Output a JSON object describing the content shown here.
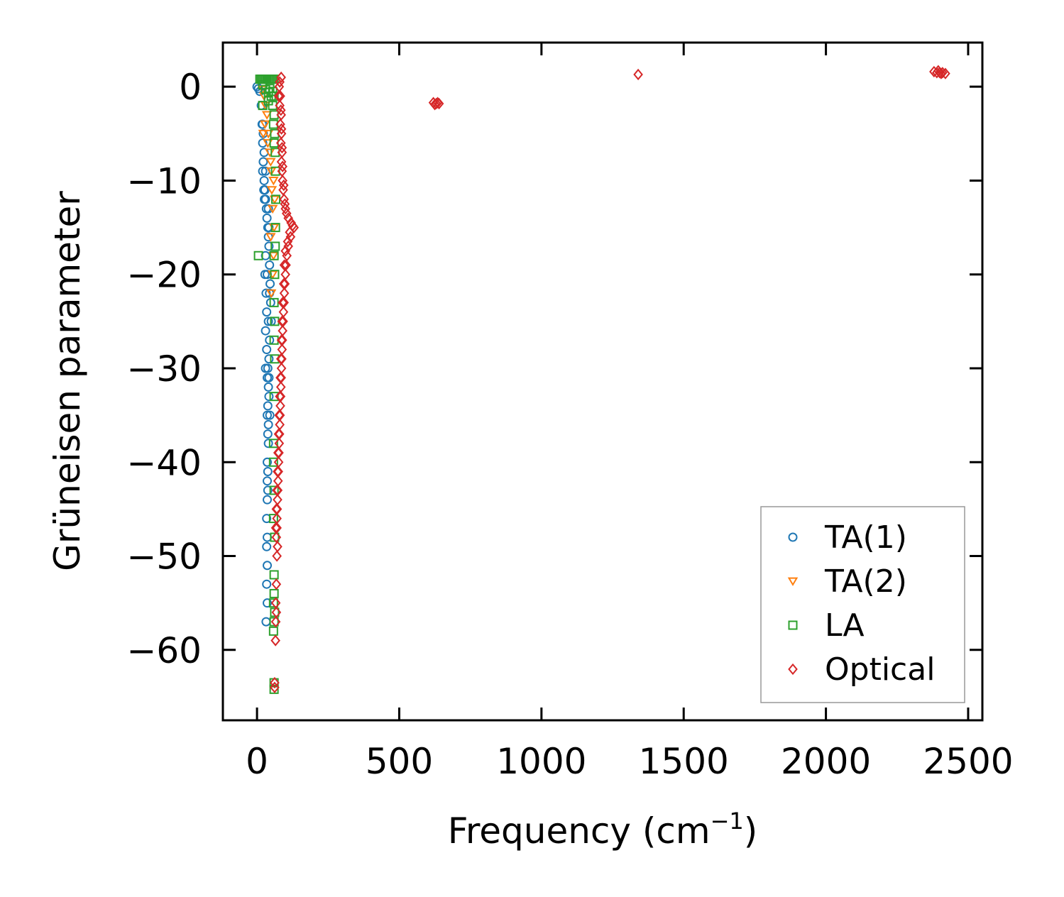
{
  "chart_data": {
    "type": "scatter",
    "title": "",
    "xlabel": "Frequency (cm",
    "xlabel_superscript": "−1",
    "xlabel_suffix": ")",
    "ylabel": "Grüneisen parameter",
    "xlim": [
      -120,
      2550
    ],
    "ylim": [
      -67.5,
      4.7
    ],
    "xticks": [
      0,
      500,
      1000,
      1500,
      2000,
      2500
    ],
    "xtick_labels": [
      "0",
      "500",
      "1000",
      "1500",
      "2000",
      "2500"
    ],
    "yticks": [
      0,
      -10,
      -20,
      -30,
      -40,
      -50,
      -60
    ],
    "ytick_labels": [
      "0",
      "−10",
      "−20",
      "−30",
      "−40",
      "−50",
      "−60"
    ],
    "grid": false,
    "legend_position": "lower-right",
    "series": [
      {
        "name": "TA(1)",
        "marker": "circle",
        "color": "#1f77b4",
        "points": [
          [
            0,
            0
          ],
          [
            5,
            -0.2
          ],
          [
            10,
            -0.5
          ],
          [
            15,
            -2
          ],
          [
            18,
            -4
          ],
          [
            20,
            -6
          ],
          [
            22,
            -8
          ],
          [
            25,
            -10
          ],
          [
            28,
            -11
          ],
          [
            30,
            -12
          ],
          [
            33,
            -13
          ],
          [
            35,
            -14
          ],
          [
            38,
            -15
          ],
          [
            40,
            -16
          ],
          [
            42,
            -17
          ],
          [
            44,
            -19
          ],
          [
            46,
            -21
          ],
          [
            48,
            -23
          ],
          [
            50,
            -25
          ],
          [
            44,
            -27
          ],
          [
            42,
            -29
          ],
          [
            38,
            -30
          ],
          [
            36,
            -31
          ],
          [
            40,
            -32
          ],
          [
            42,
            -33
          ],
          [
            38,
            -34
          ],
          [
            36,
            -35
          ],
          [
            40,
            -36
          ],
          [
            38,
            -37
          ],
          [
            40,
            -38
          ],
          [
            36,
            -40
          ],
          [
            38,
            -41
          ],
          [
            36,
            -42
          ],
          [
            38,
            -43
          ],
          [
            36,
            -44
          ],
          [
            34,
            -46
          ],
          [
            36,
            -48
          ],
          [
            34,
            -49
          ],
          [
            36,
            -51
          ],
          [
            34,
            -53
          ],
          [
            36,
            -55
          ],
          [
            32,
            -57
          ],
          [
            20,
            -4
          ],
          [
            22,
            -5
          ],
          [
            25,
            -7
          ],
          [
            30,
            -9
          ],
          [
            26,
            -12
          ],
          [
            30,
            -18
          ],
          [
            28,
            -20
          ],
          [
            32,
            -22
          ],
          [
            34,
            -24
          ],
          [
            30,
            -26
          ],
          [
            34,
            -28
          ],
          [
            20,
            -9
          ],
          [
            24,
            -11
          ],
          [
            40,
            -13
          ],
          [
            42,
            -15
          ],
          [
            36,
            -20
          ],
          [
            44,
            -22
          ],
          [
            40,
            -25
          ],
          [
            30,
            -30
          ],
          [
            42,
            -31
          ],
          [
            45,
            -35
          ]
        ]
      },
      {
        "name": "TA(2)",
        "marker": "triangle-down",
        "color": "#ff7f0e",
        "points": [
          [
            20,
            -0.3
          ],
          [
            25,
            -1
          ],
          [
            30,
            -2
          ],
          [
            35,
            -3
          ],
          [
            40,
            -5
          ],
          [
            45,
            -7
          ],
          [
            50,
            -9
          ],
          [
            52,
            -11
          ],
          [
            55,
            -13
          ],
          [
            22,
            -5
          ],
          [
            28,
            -4
          ],
          [
            38,
            -6
          ],
          [
            48,
            -8
          ],
          [
            58,
            -10
          ],
          [
            60,
            -15
          ],
          [
            58,
            -18
          ],
          [
            55,
            -20
          ],
          [
            50,
            -22
          ],
          [
            48,
            -16
          ],
          [
            62,
            -12
          ]
        ]
      },
      {
        "name": "LA",
        "marker": "square",
        "color": "#2ca02c",
        "points": [
          [
            10,
            0.8
          ],
          [
            15,
            0.8
          ],
          [
            20,
            0.8
          ],
          [
            25,
            0.8
          ],
          [
            30,
            0.8
          ],
          [
            35,
            0.8
          ],
          [
            40,
            0.8
          ],
          [
            45,
            0.8
          ],
          [
            50,
            0.8
          ],
          [
            55,
            0.8
          ],
          [
            60,
            0.8
          ],
          [
            20,
            0.2
          ],
          [
            30,
            -0.3
          ],
          [
            40,
            -0.6
          ],
          [
            50,
            -1
          ],
          [
            55,
            -2
          ],
          [
            60,
            -3
          ],
          [
            62,
            -5
          ],
          [
            64,
            -7
          ],
          [
            65,
            -9
          ],
          [
            66,
            -12
          ],
          [
            65,
            -15
          ],
          [
            64,
            -17
          ],
          [
            62,
            -20
          ],
          [
            60,
            -23
          ],
          [
            60,
            -27
          ],
          [
            62,
            -29
          ],
          [
            60,
            -33
          ],
          [
            58,
            -38
          ],
          [
            60,
            -43
          ],
          [
            58,
            -46
          ],
          [
            60,
            -52
          ],
          [
            58,
            -55
          ],
          [
            60,
            -57
          ],
          [
            58,
            -58
          ],
          [
            60,
            -63.5
          ],
          [
            60,
            -64.2
          ],
          [
            5,
            -18
          ],
          [
            20,
            -2
          ],
          [
            40,
            -1.5
          ],
          [
            60,
            -1
          ],
          [
            58,
            -4
          ],
          [
            60,
            -6
          ],
          [
            60,
            -18
          ],
          [
            62,
            -25
          ],
          [
            58,
            -40
          ],
          [
            62,
            -48
          ],
          [
            60,
            -54
          ],
          [
            62,
            -56
          ],
          [
            55,
            -0.5
          ],
          [
            45,
            -0.2
          ]
        ]
      },
      {
        "name": "Optical",
        "marker": "diamond",
        "color": "#d62728",
        "points": [
          [
            85,
            1
          ],
          [
            80,
            0.5
          ],
          [
            78,
            0
          ],
          [
            76,
            -1
          ],
          [
            80,
            -2
          ],
          [
            85,
            -3
          ],
          [
            82,
            -4
          ],
          [
            86,
            -5
          ],
          [
            84,
            -6
          ],
          [
            88,
            -7
          ],
          [
            86,
            -8
          ],
          [
            88,
            -9
          ],
          [
            90,
            -10
          ],
          [
            92,
            -11
          ],
          [
            95,
            -12
          ],
          [
            100,
            -13
          ],
          [
            110,
            -14
          ],
          [
            120,
            -14.5
          ],
          [
            130,
            -15
          ],
          [
            118,
            -16
          ],
          [
            110,
            -17
          ],
          [
            105,
            -18
          ],
          [
            102,
            -19
          ],
          [
            100,
            -20
          ],
          [
            98,
            -21
          ],
          [
            96,
            -22
          ],
          [
            95,
            -23
          ],
          [
            93,
            -24
          ],
          [
            92,
            -25
          ],
          [
            90,
            -26
          ],
          [
            89,
            -27
          ],
          [
            88,
            -28
          ],
          [
            87,
            -29
          ],
          [
            86,
            -30
          ],
          [
            85,
            -31
          ],
          [
            84,
            -32
          ],
          [
            83,
            -33
          ],
          [
            82,
            -34
          ],
          [
            81,
            -35
          ],
          [
            80,
            -36
          ],
          [
            79,
            -37
          ],
          [
            78,
            -38
          ],
          [
            77,
            -39
          ],
          [
            76,
            -40
          ],
          [
            75,
            -41
          ],
          [
            74,
            -42
          ],
          [
            73,
            -43
          ],
          [
            72,
            -44
          ],
          [
            71,
            -45
          ],
          [
            70,
            -46
          ],
          [
            70,
            -47
          ],
          [
            68,
            -48
          ],
          [
            72,
            -49
          ],
          [
            70,
            -50
          ],
          [
            68,
            -53
          ],
          [
            66,
            -55
          ],
          [
            68,
            -56
          ],
          [
            66,
            -57
          ],
          [
            65,
            -59
          ],
          [
            62,
            -63.5
          ],
          [
            62,
            -64
          ],
          [
            620,
            -1.7
          ],
          [
            630,
            -1.8
          ],
          [
            640,
            -1.8
          ],
          [
            625,
            -1.9
          ],
          [
            635,
            -1.7
          ],
          [
            1340,
            1.3
          ],
          [
            2380,
            1.6
          ],
          [
            2390,
            1.5
          ],
          [
            2400,
            1.5
          ],
          [
            2410,
            1.5
          ],
          [
            2420,
            1.4
          ],
          [
            2395,
            1.7
          ],
          [
            2405,
            1.4
          ],
          [
            115,
            -15.5
          ],
          [
            108,
            -16.5
          ],
          [
            125,
            -14.8
          ],
          [
            100,
            -17.5
          ],
          [
            96,
            -19
          ],
          [
            94,
            -21
          ],
          [
            90,
            -23
          ],
          [
            88,
            -25
          ],
          [
            86,
            -27
          ],
          [
            84,
            -29
          ],
          [
            82,
            -31
          ],
          [
            80,
            -33
          ],
          [
            78,
            -35
          ],
          [
            76,
            -37
          ],
          [
            74,
            -39
          ],
          [
            72,
            -41
          ],
          [
            70,
            -43
          ],
          [
            68,
            -45
          ],
          [
            66,
            -47
          ],
          [
            82,
            -1
          ],
          [
            84,
            -2.5
          ],
          [
            86,
            -4.5
          ],
          [
            88,
            -6.5
          ],
          [
            90,
            -8.5
          ],
          [
            94,
            -10.5
          ],
          [
            98,
            -12.5
          ],
          [
            104,
            -13.5
          ]
        ]
      }
    ]
  }
}
